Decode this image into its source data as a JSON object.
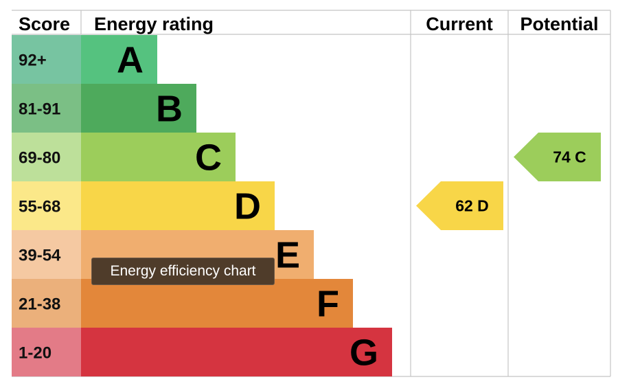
{
  "headers": {
    "score": "Score",
    "rating": "Energy rating",
    "current": "Current",
    "potential": "Potential"
  },
  "tooltip": "Energy efficiency chart",
  "chart_data": {
    "type": "bar",
    "categories": [
      "A",
      "B",
      "C",
      "D",
      "E",
      "F",
      "G"
    ],
    "bands": [
      {
        "letter": "A",
        "range": "92+",
        "bar_color": "#55c27f",
        "score_color": "#77c4a1"
      },
      {
        "letter": "B",
        "range": "81-91",
        "bar_color": "#4eaa5c",
        "score_color": "#7bbf85"
      },
      {
        "letter": "C",
        "range": "69-80",
        "bar_color": "#9ccd5b",
        "score_color": "#bde09a"
      },
      {
        "letter": "D",
        "range": "55-68",
        "bar_color": "#f8d648",
        "score_color": "#fbe889"
      },
      {
        "letter": "E",
        "range": "39-54",
        "bar_color": "#f0ae6f",
        "score_color": "#f5c9a2"
      },
      {
        "letter": "F",
        "range": "21-38",
        "bar_color": "#e3873a",
        "score_color": "#ebb07b"
      },
      {
        "letter": "G",
        "range": "1-20",
        "bar_color": "#d53440",
        "score_color": "#e37b87"
      }
    ],
    "current": {
      "value": 62,
      "letter": "D",
      "label": "62  D",
      "color": "#f8d648"
    },
    "potential": {
      "value": 74,
      "letter": "C",
      "label": "74  C",
      "color": "#9ccd5b"
    }
  }
}
